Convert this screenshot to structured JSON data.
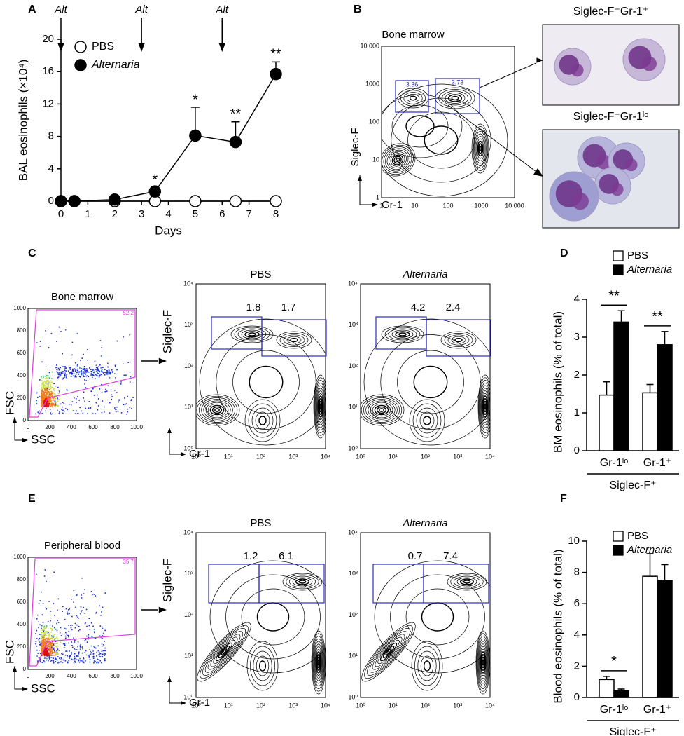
{
  "panel_labels": {
    "a": "A",
    "b": "B",
    "c": "C",
    "d": "D",
    "e": "E",
    "f": "F"
  },
  "chart_data": [
    {
      "type": "line",
      "xlabel": "Days",
      "ylabel": "BAL eosinophils (×10⁴)",
      "xlim": [
        0,
        8
      ],
      "xticks": [
        0,
        1,
        2,
        3,
        4,
        5,
        6,
        7,
        8
      ],
      "ylim": [
        0,
        20
      ],
      "yticks": [
        0,
        4,
        8,
        12,
        16,
        20
      ],
      "treatments": {
        "label": "Alt",
        "x": [
          0,
          3,
          6
        ]
      },
      "legend": "upper left",
      "series": [
        {
          "name": "PBS",
          "color": "#ffffff",
          "x": [
            0,
            0.5,
            2,
            3.5,
            5,
            6.5,
            8
          ],
          "values": [
            0,
            0,
            0,
            0,
            0,
            0,
            0
          ]
        },
        {
          "name": "Alternaria",
          "color": "#000000",
          "x": [
            0,
            0.5,
            2,
            3.5,
            5,
            6.5,
            8
          ],
          "values": [
            0,
            0,
            0.2,
            1.2,
            8.1,
            7.3,
            15.7
          ],
          "errors": [
            0,
            0,
            0.2,
            0.5,
            3.5,
            2.5,
            1.5
          ],
          "significance": [
            null,
            null,
            null,
            "*",
            "*",
            "**",
            "**"
          ]
        }
      ]
    },
    {
      "type": "bar",
      "ylabel": "BM eosinophils (% of total)",
      "categories": [
        "Gr-1ˡᵒ",
        "Gr-1⁺"
      ],
      "group_label": "Siglec-F⁺",
      "ylim": [
        0,
        4
      ],
      "yticks": [
        0,
        1,
        2,
        3,
        4
      ],
      "legend": "upper right",
      "significance": [
        "**",
        "**"
      ],
      "series": [
        {
          "name": "PBS",
          "color": "#ffffff",
          "values": [
            1.47,
            1.53
          ],
          "errors": [
            0.35,
            0.22
          ]
        },
        {
          "name": "Alternaria",
          "color": "#000000",
          "values": [
            3.4,
            2.8
          ],
          "errors": [
            0.3,
            0.35
          ]
        }
      ]
    },
    {
      "type": "bar",
      "ylabel": "Blood eosinophils (% of total)",
      "categories": [
        "Gr-1ˡᵒ",
        "Gr-1⁺"
      ],
      "group_label": "Siglec-F⁺",
      "ylim": [
        0,
        10
      ],
      "yticks": [
        0,
        2,
        4,
        6,
        8,
        10
      ],
      "legend": "upper right",
      "significance": [
        "*",
        null
      ],
      "series": [
        {
          "name": "PBS",
          "color": "#ffffff",
          "values": [
            1.15,
            7.75
          ],
          "errors": [
            0.2,
            1.45
          ]
        },
        {
          "name": "Alternaria",
          "color": "#000000",
          "values": [
            0.42,
            7.5
          ],
          "errors": [
            0.12,
            1.0
          ]
        }
      ]
    }
  ],
  "flow_b": {
    "title": "Bone marrow",
    "ylabel": "Siglec-F",
    "xlabel": "Gr-1",
    "ticks": [
      "1",
      "10",
      "100",
      "1000",
      "10 000"
    ],
    "gates": [
      "3.36",
      "3.73"
    ],
    "cells": [
      "Siglec-F⁺Gr-1⁺",
      "Siglec-F⁺Gr-1ˡᵒ"
    ]
  },
  "flow_c": {
    "scatter": {
      "title": "Bone marrow",
      "gate": "52.2",
      "ylabel": "FSC",
      "xlabel": "SSC",
      "ticks": [
        "0",
        "200",
        "400",
        "600",
        "800",
        "1000"
      ]
    },
    "ticks": [
      "10⁰",
      "10¹",
      "10²",
      "10³",
      "10⁴"
    ],
    "ylabel": "Siglec-F",
    "xlabel": "Gr-1",
    "plots": [
      {
        "title": "PBS",
        "gates": [
          "1.8",
          "1.7"
        ]
      },
      {
        "title": "Alternaria",
        "gates": [
          "4.2",
          "2.4"
        ]
      }
    ]
  },
  "flow_e": {
    "scatter": {
      "title": "Peripheral blood",
      "gate": "35.7",
      "ylabel": "FSC",
      "xlabel": "SSC",
      "ticks": [
        "0",
        "200",
        "400",
        "600",
        "800",
        "1000"
      ]
    },
    "ticks": [
      "10⁰",
      "10¹",
      "10²",
      "10³",
      "10⁴"
    ],
    "ylabel": "Siglec-F",
    "xlabel": "Gr-1",
    "plots": [
      {
        "title": "PBS",
        "gates": [
          "1.2",
          "6.1"
        ]
      },
      {
        "title": "Alternaria",
        "gates": [
          "0.7",
          "7.4"
        ]
      }
    ]
  }
}
